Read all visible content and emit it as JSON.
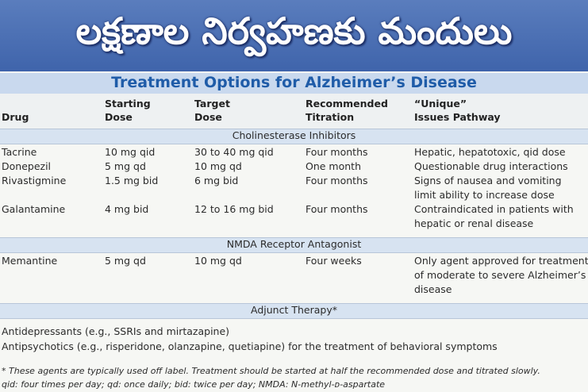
{
  "header": {
    "title": "లక్షణాల నిర్వహణకు మందులు"
  },
  "table": {
    "title": "Treatment Options for Alzheimer’s Disease",
    "columns": [
      [
        "Drug"
      ],
      [
        "Starting",
        "Dose"
      ],
      [
        "Target",
        "Dose"
      ],
      [
        "Recommended",
        "Titration"
      ],
      [
        "“Unique”",
        "Issues Pathway"
      ]
    ],
    "sections": [
      {
        "title": "Cholinesterase Inhibitors",
        "rows": [
          [
            "Tacrine",
            "10 mg qid",
            "30 to 40 mg qid",
            "Four months",
            [
              "Hepatic, hepatotoxic, qid dose"
            ]
          ],
          [
            "Donepezil",
            "5 mg qd",
            "10 mg qd",
            "One month",
            [
              "Questionable drug interactions"
            ]
          ],
          [
            "Rivastigmine",
            "1.5 mg bid",
            "6 mg bid",
            "Four months",
            [
              "Signs of nausea and vomiting",
              "limit ability to increase dose"
            ]
          ],
          [
            "Galantamine",
            "4 mg bid",
            "12 to 16 mg bid",
            "Four months",
            [
              "Contraindicated in patients with",
              "hepatic or renal disease"
            ]
          ]
        ]
      },
      {
        "title": "NMDA Receptor Antagonist",
        "rows": [
          [
            "Memantine",
            "5 mg qd",
            "10 mg qd",
            "Four weeks",
            [
              "Only agent approved for treatment",
              "of moderate to severe Alzheimer’s",
              "disease"
            ]
          ]
        ]
      },
      {
        "title": "Adjunct Therapy*",
        "lines": [
          "Antidepressants (e.g., SSRIs and mirtazapine)",
          "Antipsychotics (e.g., risperidone, olanzapine, quetiapine) for the treatment of behavioral symptoms"
        ]
      }
    ],
    "footnotes": [
      "* These agents are typically used off label. Treatment should be started at half the recommended dose and titrated slowly.",
      "qid: four times per day; qd: once daily; bid: twice per day; NMDA: N-methyl-ᴅ-aspartate"
    ]
  }
}
